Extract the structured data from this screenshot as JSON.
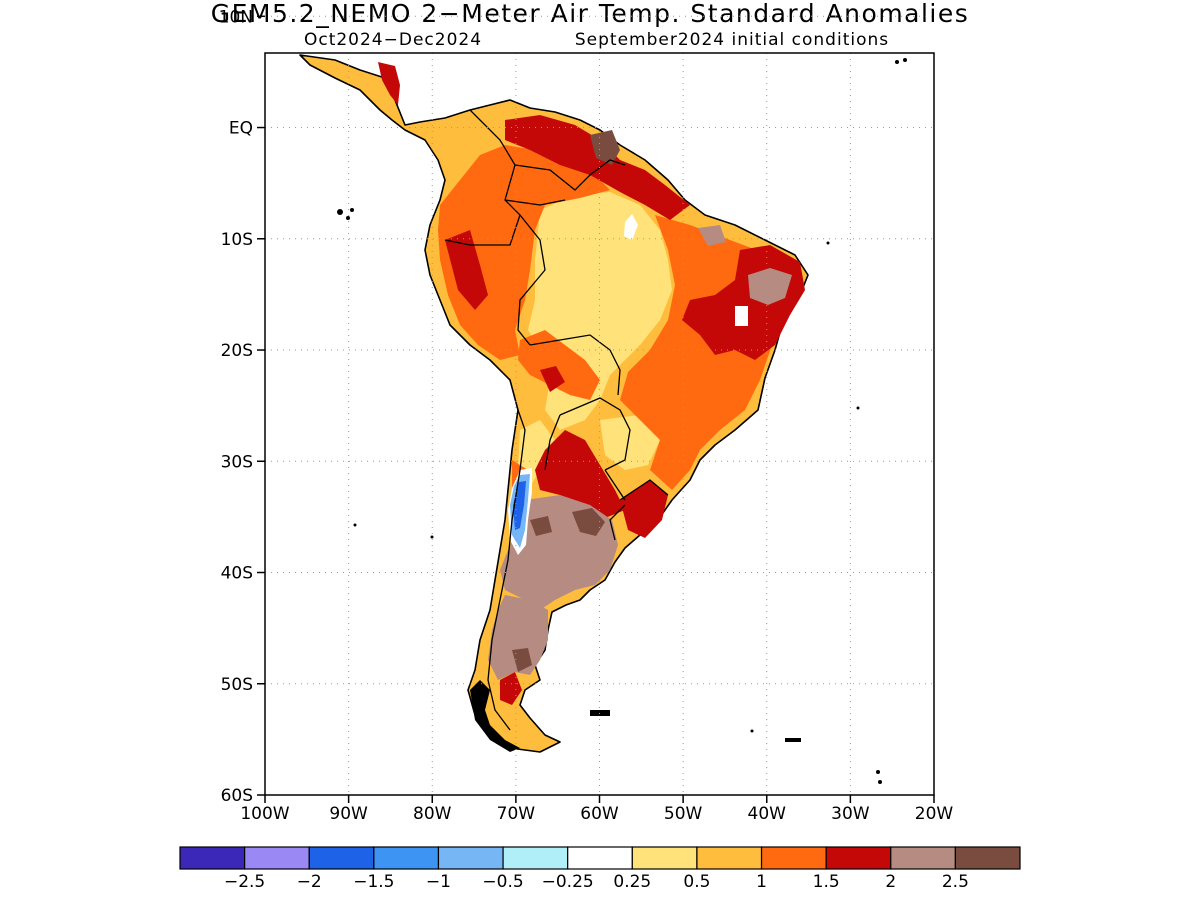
{
  "title": "GEM5.2_NEMO 2−Meter Air Temp. Standard Anomalies",
  "subtitle_left": "Oct2024−Dec2024",
  "subtitle_right": "September2024 initial conditions",
  "map": {
    "lon_range": [
      -100,
      -20
    ],
    "lat_range": [
      -60,
      6
    ],
    "x_ticks": [
      {
        "lon": -100,
        "label": "100W"
      },
      {
        "lon": -90,
        "label": "90W"
      },
      {
        "lon": -80,
        "label": "80W"
      },
      {
        "lon": -70,
        "label": "70W"
      },
      {
        "lon": -60,
        "label": "60W"
      },
      {
        "lon": -50,
        "label": "50W"
      },
      {
        "lon": -40,
        "label": "40W"
      },
      {
        "lon": -30,
        "label": "30W"
      },
      {
        "lon": -20,
        "label": "20W"
      }
    ],
    "y_ticks": [
      {
        "lat": 10,
        "label": "10N"
      },
      {
        "lat": 0,
        "label": "EQ"
      },
      {
        "lat": -10,
        "label": "10S"
      },
      {
        "lat": -20,
        "label": "20S"
      },
      {
        "lat": -30,
        "label": "30S"
      },
      {
        "lat": -40,
        "label": "40S"
      },
      {
        "lat": -50,
        "label": "50S"
      },
      {
        "lat": -60,
        "label": "60S"
      }
    ],
    "grid": "dotted"
  },
  "colorbar": {
    "colors": [
      "#3b28b8",
      "#9a88f5",
      "#1e62e8",
      "#3e94f2",
      "#76b6f5",
      "#b0eef8",
      "#ffffff",
      "#ffe37a",
      "#ffbd3e",
      "#ff6a10",
      "#c40808",
      "#b58b82",
      "#7a4c40"
    ],
    "labels": [
      "−2.5",
      "−2",
      "−1.5",
      "−1",
      "−0.5",
      "−0.25",
      "0.25",
      "0.5",
      "1",
      "1.5",
      "2",
      "2.5"
    ]
  },
  "regions": [
    {
      "name": "continent",
      "level": "0.5"
    },
    {
      "name": "amazon-core",
      "level": "0.25"
    },
    {
      "name": "northern-orange",
      "level": "1"
    },
    {
      "name": "brazil-east-orange",
      "level": "1"
    },
    {
      "name": "ne-brazil-red",
      "level": "1.5"
    },
    {
      "name": "north-coast-red",
      "level": "1.5"
    },
    {
      "name": "argentina-red",
      "level": "1.5"
    },
    {
      "name": "argentina-brown",
      "level": "2"
    },
    {
      "name": "patagonia-brown",
      "level": "2"
    },
    {
      "name": "andes-blue",
      "level": "-1"
    }
  ]
}
